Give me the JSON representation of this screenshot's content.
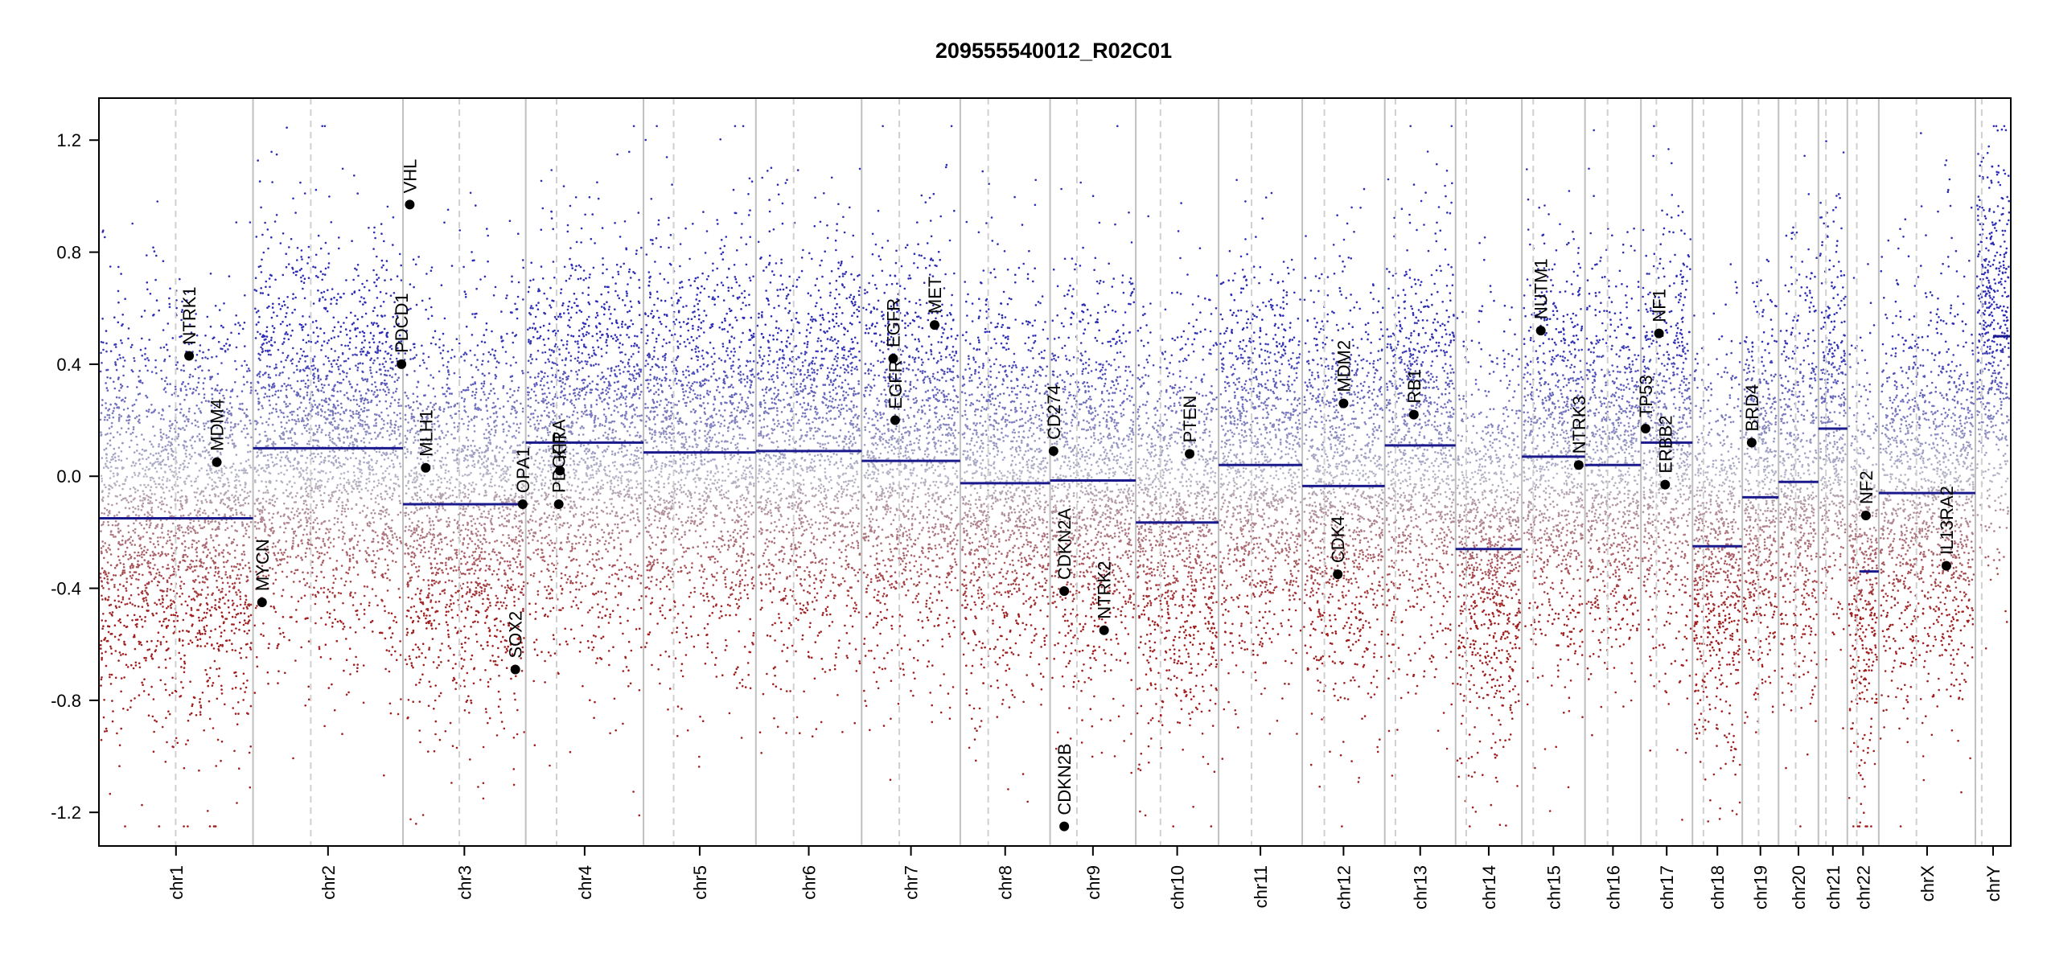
{
  "chart_data": {
    "type": "scatter",
    "title": "209555540012_R02C01",
    "xlabel": "",
    "ylabel": "",
    "ylim": [
      -1.32,
      1.35
    ],
    "yticks": [
      1.2,
      0.8,
      0.4,
      0.0,
      -0.4,
      -0.8,
      -1.2
    ],
    "ytick_labels": [
      "1.2",
      "0.8",
      "0.4",
      "0.0",
      "-0.4",
      "-0.8",
      "-1.2"
    ],
    "grid": false,
    "colors": {
      "gain": "#2c2cb4",
      "loss": "#a01e1e",
      "neutral": "#b8b8c8",
      "segment": "#1a1a8c",
      "divider": "#c0c0c0",
      "centromere": "#d0d0d0"
    },
    "chromosomes": [
      {
        "name": "chr1",
        "length": 248.9,
        "centromere": 0.498,
        "cn": -0.15
      },
      {
        "name": "chr2",
        "length": 242.2,
        "centromere": 0.385,
        "cn": 0.1
      },
      {
        "name": "chr3",
        "length": 198.3,
        "centromere": 0.459,
        "cn": -0.1
      },
      {
        "name": "chr4",
        "length": 190.2,
        "centromere": 0.262,
        "cn": 0.12
      },
      {
        "name": "chr5",
        "length": 181.5,
        "centromere": 0.268,
        "cn": 0.085
      },
      {
        "name": "chr6",
        "length": 170.8,
        "centromere": 0.357,
        "cn": 0.09
      },
      {
        "name": "chr7",
        "length": 159.3,
        "centromere": 0.382,
        "cn": 0.055
      },
      {
        "name": "chr8",
        "length": 145.1,
        "centromere": 0.311,
        "cn": -0.025
      },
      {
        "name": "chr9",
        "length": 138.4,
        "centromere": 0.313,
        "cn": -0.015
      },
      {
        "name": "chr10",
        "length": 133.8,
        "centromere": 0.298,
        "cn": -0.165
      },
      {
        "name": "chr11",
        "length": 135.1,
        "centromere": 0.394,
        "cn": 0.04
      },
      {
        "name": "chr12",
        "length": 133.3,
        "centromere": 0.268,
        "cn": -0.035
      },
      {
        "name": "chr13",
        "length": 114.4,
        "centromere": 0.15,
        "cn": 0.11
      },
      {
        "name": "chr14",
        "length": 107.0,
        "centromere": 0.16,
        "cn": -0.26
      },
      {
        "name": "chr15",
        "length": 102.0,
        "centromere": 0.18,
        "cn": 0.07
      },
      {
        "name": "chr16",
        "length": 90.3,
        "centromere": 0.404,
        "cn": 0.04
      },
      {
        "name": "chr17",
        "length": 83.3,
        "centromere": 0.3,
        "cn": 0.12
      },
      {
        "name": "chr18",
        "length": 80.4,
        "centromere": 0.22,
        "cn": -0.25
      },
      {
        "name": "chr19",
        "length": 58.6,
        "centromere": 0.45,
        "cn": -0.075
      },
      {
        "name": "chr20",
        "length": 64.4,
        "centromere": 0.43,
        "cn": -0.02
      },
      {
        "name": "chr21",
        "length": 46.7,
        "centromere": 0.26,
        "cn": 0.17
      },
      {
        "name": "chr22",
        "length": 50.8,
        "centromere": 0.3,
        "cn": -0.34,
        "cn_start": 0.38,
        "cn_left": -0.34
      },
      {
        "name": "chrX",
        "length": 156.0,
        "centromere": 0.39,
        "cn": -0.06
      },
      {
        "name": "chrY",
        "length": 57.2,
        "centromere": 0.18,
        "cn": 0.5,
        "cn_start": 0.5
      }
    ],
    "genes": [
      {
        "name": "NTRK1",
        "chr": "chr1",
        "pos": 0.585,
        "value": 0.43
      },
      {
        "name": "MDM4",
        "chr": "chr1",
        "pos": 0.765,
        "value": 0.05
      },
      {
        "name": "MYCN",
        "chr": "chr2",
        "pos": 0.06,
        "value": -0.45
      },
      {
        "name": "PDCD1",
        "chr": "chr2",
        "pos": 0.99,
        "value": 0.4
      },
      {
        "name": "VHL",
        "chr": "chr3",
        "pos": 0.055,
        "value": 0.97
      },
      {
        "name": "MLH1",
        "chr": "chr3",
        "pos": 0.185,
        "value": 0.03
      },
      {
        "name": "SOX2",
        "chr": "chr3",
        "pos": 0.915,
        "value": -0.69
      },
      {
        "name": "OPA1",
        "chr": "chr3",
        "pos": 0.975,
        "value": -0.1
      },
      {
        "name": "KIT",
        "chr": "chr4",
        "pos": 0.29,
        "value": 0.02
      },
      {
        "name": "PDGFRA",
        "chr": "chr4",
        "pos": 0.28,
        "value": -0.1
      },
      {
        "name": "EGFR",
        "chr": "chr7",
        "pos": 0.34,
        "value": 0.2
      },
      {
        "name": "EGFR",
        "chr": "chr7",
        "pos": 0.32,
        "value": 0.42
      },
      {
        "name": "MET",
        "chr": "chr7",
        "pos": 0.74,
        "value": 0.54
      },
      {
        "name": "CD274",
        "chr": "chr9",
        "pos": 0.04,
        "value": 0.09
      },
      {
        "name": "CDKN2A",
        "chr": "chr9",
        "pos": 0.165,
        "value": -0.41
      },
      {
        "name": "CDKN2B",
        "chr": "chr9",
        "pos": 0.165,
        "value": -1.25
      },
      {
        "name": "NTRK2",
        "chr": "chr9",
        "pos": 0.63,
        "value": -0.55
      },
      {
        "name": "PTEN",
        "chr": "chr10",
        "pos": 0.65,
        "value": 0.08
      },
      {
        "name": "MDM2",
        "chr": "chr12",
        "pos": 0.5,
        "value": 0.26
      },
      {
        "name": "CDK4",
        "chr": "chr12",
        "pos": 0.43,
        "value": -0.35
      },
      {
        "name": "RB1",
        "chr": "chr13",
        "pos": 0.41,
        "value": 0.22
      },
      {
        "name": "NUTM1",
        "chr": "chr15",
        "pos": 0.3,
        "value": 0.52
      },
      {
        "name": "NTRK3",
        "chr": "chr15",
        "pos": 0.9,
        "value": 0.04
      },
      {
        "name": "TP53",
        "chr": "chr17",
        "pos": 0.09,
        "value": 0.17
      },
      {
        "name": "NF1",
        "chr": "chr17",
        "pos": 0.35,
        "value": 0.51
      },
      {
        "name": "ERBB2",
        "chr": "chr17",
        "pos": 0.47,
        "value": -0.03
      },
      {
        "name": "BRD4",
        "chr": "chr19",
        "pos": 0.26,
        "value": 0.12
      },
      {
        "name": "NF2",
        "chr": "chr22",
        "pos": 0.59,
        "value": -0.14
      },
      {
        "name": "IL13RA2",
        "chr": "chrX",
        "pos": 0.7,
        "value": -0.32
      }
    ]
  }
}
